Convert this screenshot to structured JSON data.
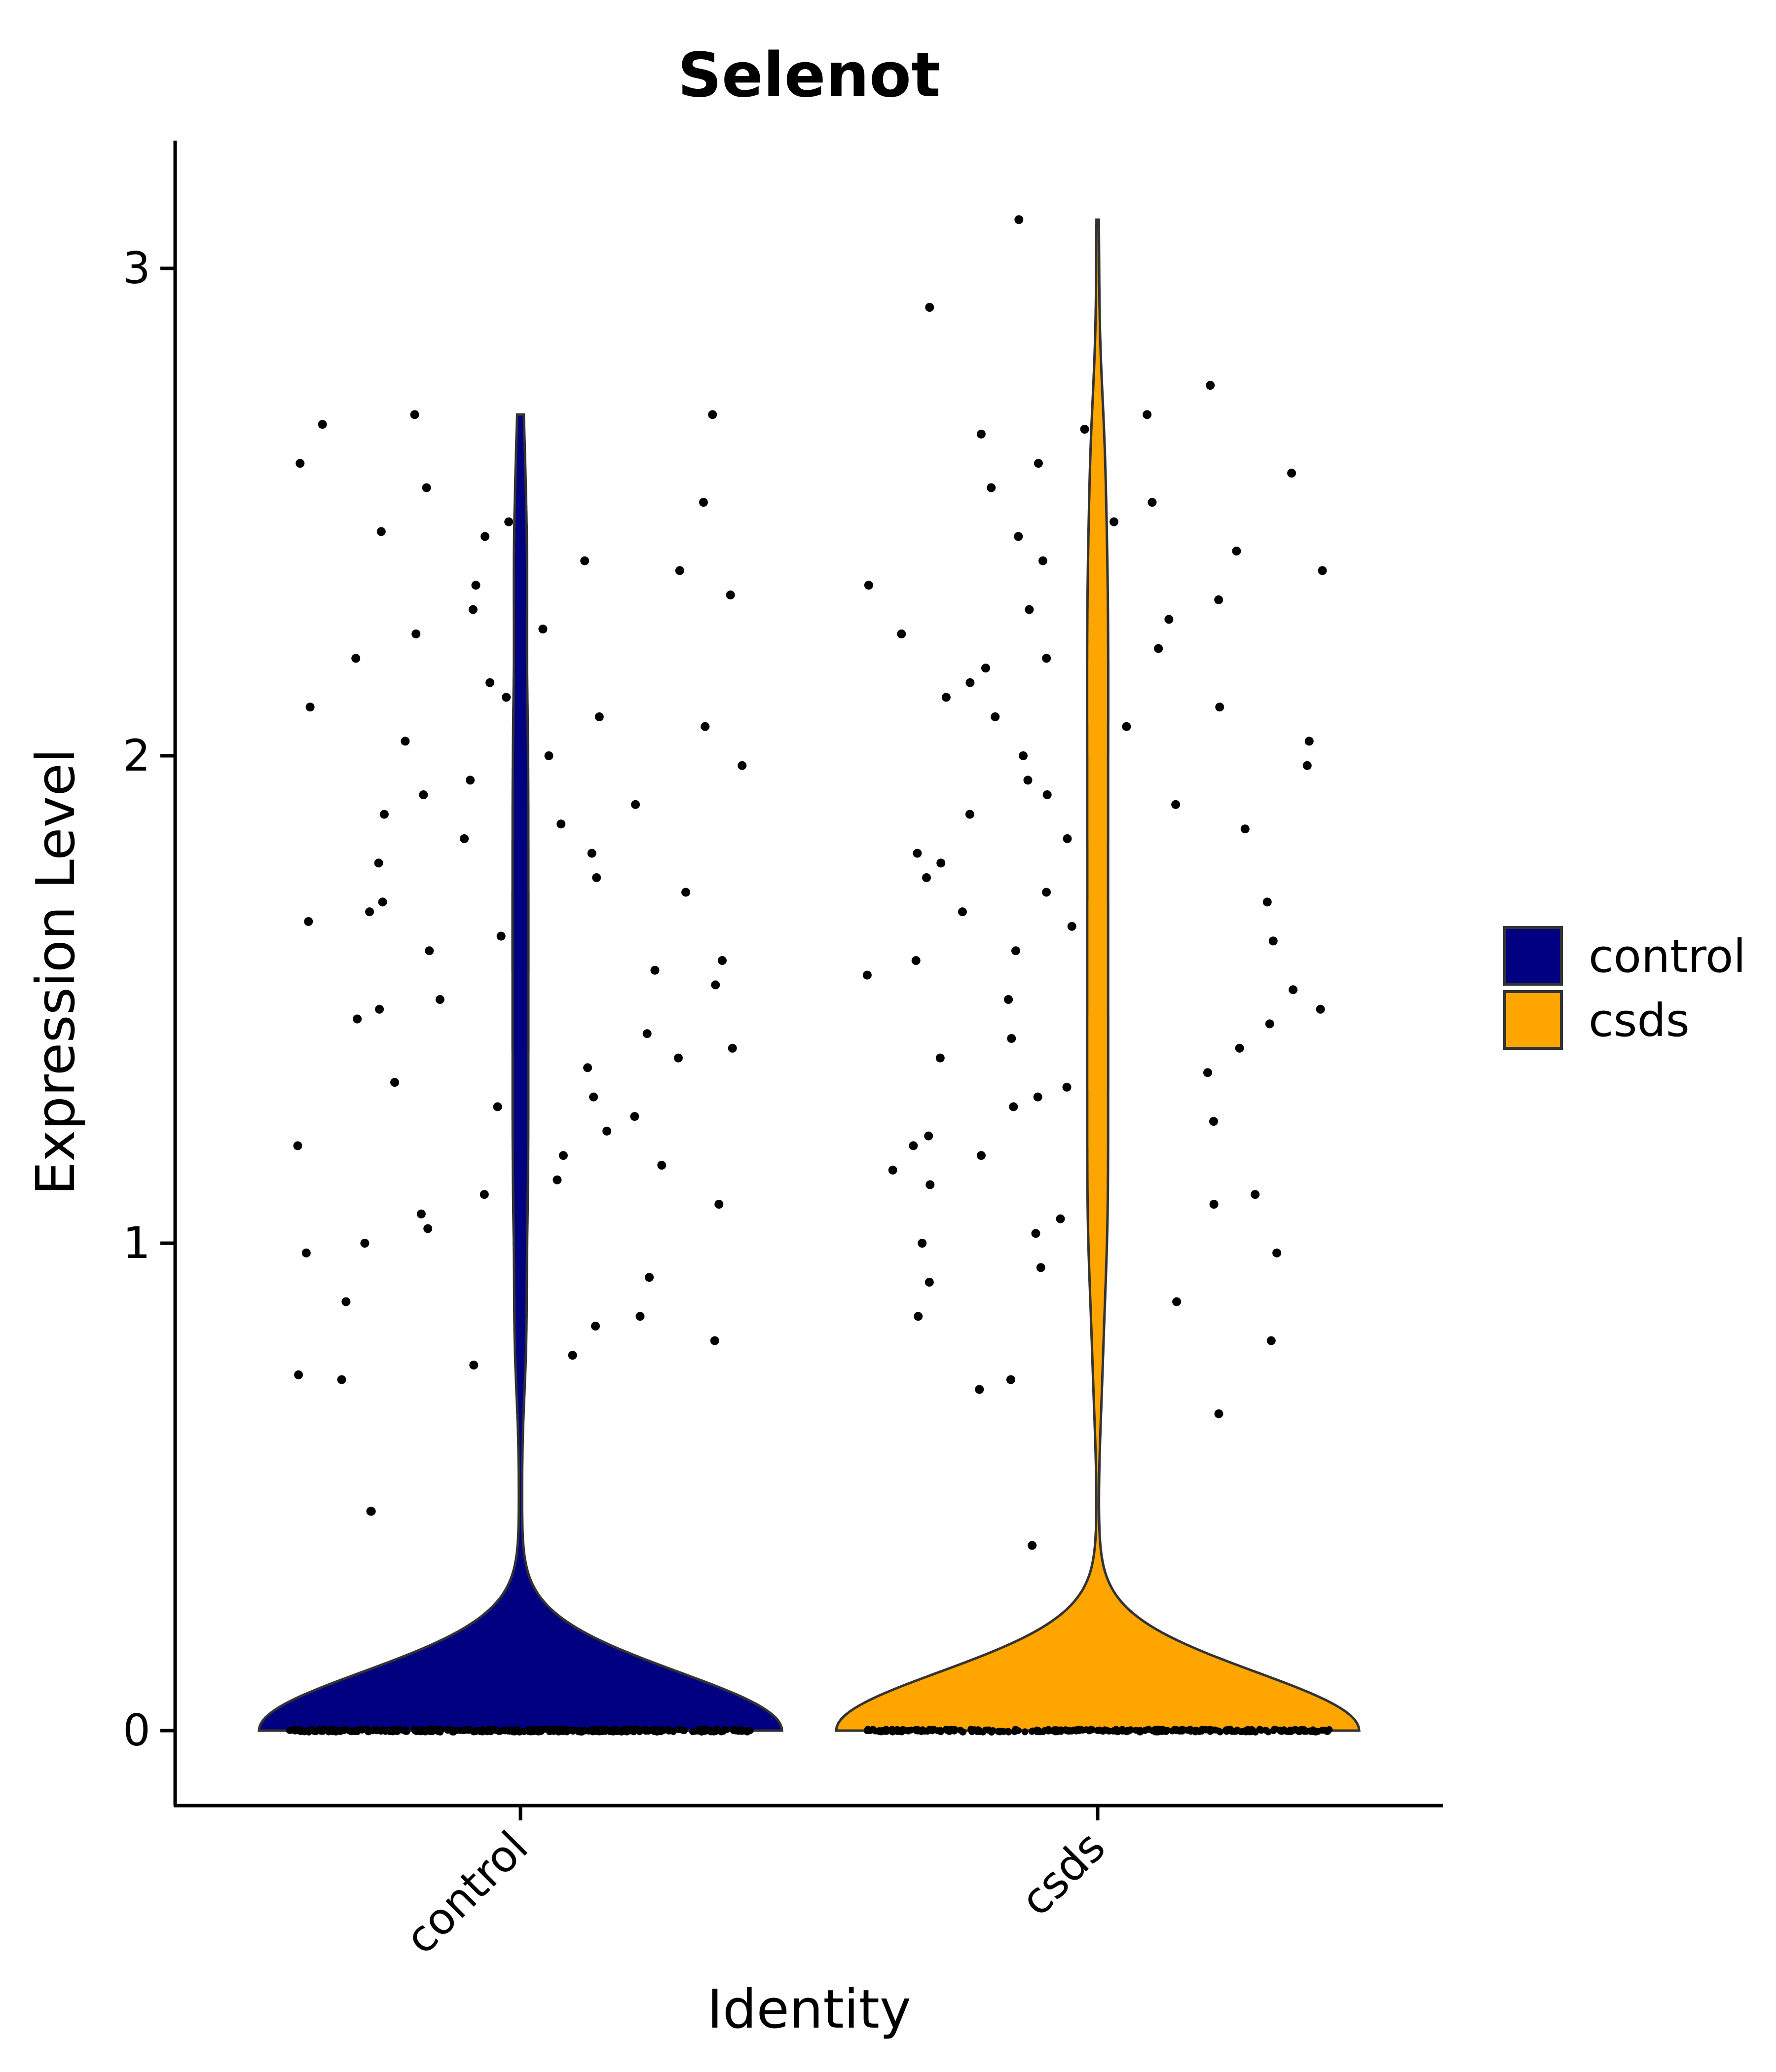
{
  "chart_data": {
    "type": "violin",
    "title": "Selenot",
    "xlabel": "Identity",
    "ylabel": "Expression Level",
    "ylim": [
      -0.15,
      3.25
    ],
    "yticks": [
      0,
      1,
      2,
      3
    ],
    "grid": false,
    "legend_position": "right",
    "categories": [
      "control",
      "csds"
    ],
    "legend": [
      {
        "label": "control",
        "color": "#000080"
      },
      {
        "label": "csds",
        "color": "#FFA500"
      }
    ],
    "series": [
      {
        "name": "control",
        "color": "#000080",
        "n_zero_cells": 400,
        "nonzero_values": [
          2.7,
          2.7,
          2.68,
          2.6,
          2.55,
          2.52,
          2.48,
          2.46,
          2.45,
          2.4,
          2.38,
          2.35,
          2.33,
          2.3,
          2.26,
          2.25,
          2.2,
          2.15,
          2.12,
          2.1,
          2.08,
          2.06,
          2.03,
          2.0,
          1.98,
          1.95,
          1.92,
          1.9,
          1.88,
          1.86,
          1.83,
          1.8,
          1.78,
          1.75,
          1.72,
          1.7,
          1.68,
          1.66,
          1.63,
          1.6,
          1.58,
          1.56,
          1.53,
          1.5,
          1.48,
          1.46,
          1.43,
          1.4,
          1.38,
          1.36,
          1.33,
          1.3,
          1.28,
          1.26,
          1.23,
          1.2,
          1.18,
          1.16,
          1.13,
          1.1,
          1.08,
          1.06,
          1.03,
          1.0,
          0.98,
          0.93,
          0.88,
          0.85,
          0.83,
          0.8,
          0.77,
          0.75,
          0.73,
          0.72,
          0.45,
          0.45
        ]
      },
      {
        "name": "csds",
        "color": "#FFA500",
        "n_zero_cells": 300,
        "nonzero_values": [
          3.1,
          2.92,
          2.76,
          2.7,
          2.67,
          2.66,
          2.6,
          2.58,
          2.55,
          2.52,
          2.48,
          2.45,
          2.42,
          2.4,
          2.38,
          2.35,
          2.32,
          2.3,
          2.28,
          2.25,
          2.22,
          2.2,
          2.18,
          2.15,
          2.12,
          2.1,
          2.08,
          2.06,
          2.03,
          2.0,
          1.98,
          1.95,
          1.92,
          1.9,
          1.88,
          1.85,
          1.83,
          1.8,
          1.78,
          1.75,
          1.72,
          1.7,
          1.68,
          1.65,
          1.62,
          1.6,
          1.58,
          1.55,
          1.52,
          1.5,
          1.48,
          1.45,
          1.42,
          1.4,
          1.38,
          1.35,
          1.32,
          1.3,
          1.28,
          1.25,
          1.22,
          1.2,
          1.18,
          1.15,
          1.12,
          1.1,
          1.08,
          1.05,
          1.02,
          1.0,
          0.98,
          0.95,
          0.92,
          0.88,
          0.85,
          0.8,
          0.72,
          0.7,
          0.65,
          0.38
        ]
      }
    ]
  }
}
